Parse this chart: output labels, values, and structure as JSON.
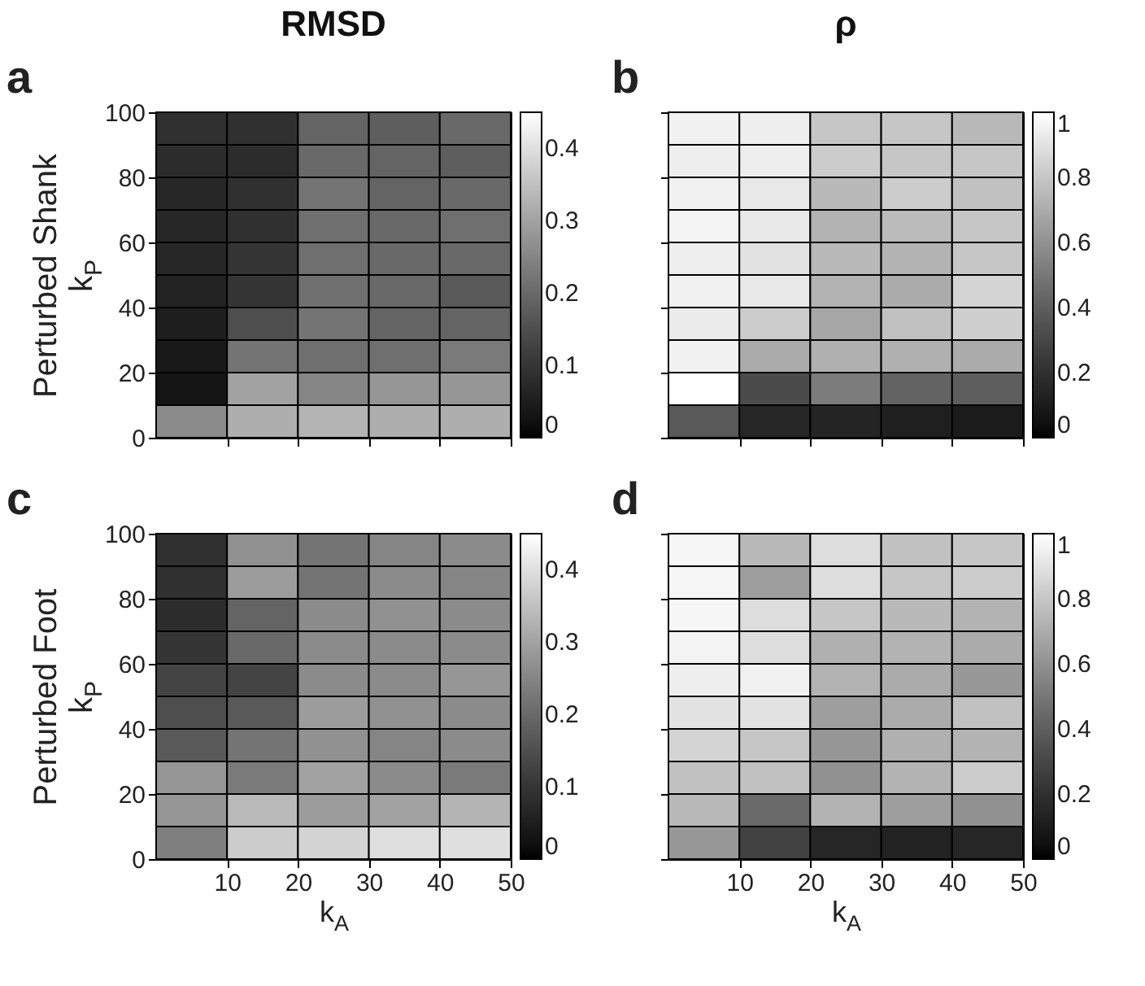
{
  "chart_data": [
    {
      "type": "heatmap",
      "title": "RMSD",
      "ylabel": "Perturbed Shank\nk$_{P}$",
      "annotations": [
        "a"
      ],
      "tick_labels": "y",
      "xlim": [
        0,
        50
      ],
      "xticks": [
        10,
        20,
        30,
        40,
        50
      ],
      "ylim": [
        0,
        100
      ],
      "yticks": [
        0,
        20,
        40,
        60,
        80,
        100
      ],
      "clim": [
        0,
        0.45
      ],
      "cticks": [
        0,
        0.1,
        0.2,
        0.3,
        0.4
      ],
      "cells": [
        [
          0.09,
          0.09,
          0.19,
          0.18,
          0.2
        ],
        [
          0.08,
          0.08,
          0.2,
          0.19,
          0.18
        ],
        [
          0.07,
          0.09,
          0.22,
          0.19,
          0.2
        ],
        [
          0.07,
          0.09,
          0.21,
          0.2,
          0.21
        ],
        [
          0.07,
          0.1,
          0.21,
          0.2,
          0.2
        ],
        [
          0.06,
          0.1,
          0.21,
          0.2,
          0.17
        ],
        [
          0.05,
          0.15,
          0.22,
          0.19,
          0.19
        ],
        [
          0.04,
          0.22,
          0.21,
          0.21,
          0.23
        ],
        [
          0.03,
          0.3,
          0.25,
          0.28,
          0.28
        ],
        [
          0.26,
          0.32,
          0.33,
          0.32,
          0.32
        ]
      ]
    },
    {
      "type": "heatmap",
      "title": "ρ",
      "annotations": [
        "b"
      ],
      "tick_labels": false,
      "xlim": [
        0,
        50
      ],
      "xticks": [
        10,
        20,
        30,
        40,
        50
      ],
      "ylim": [
        0,
        100
      ],
      "yticks": [
        0,
        20,
        40,
        60,
        80,
        100
      ],
      "clim": [
        0,
        1
      ],
      "cticks": [
        0,
        0.2,
        0.4,
        0.6,
        0.8,
        1
      ],
      "cells": [
        [
          0.95,
          0.94,
          0.8,
          0.8,
          0.75
        ],
        [
          0.94,
          0.94,
          0.82,
          0.8,
          0.8
        ],
        [
          0.95,
          0.92,
          0.75,
          0.82,
          0.78
        ],
        [
          0.96,
          0.92,
          0.73,
          0.76,
          0.8
        ],
        [
          0.94,
          0.9,
          0.75,
          0.73,
          0.8
        ],
        [
          0.95,
          0.92,
          0.73,
          0.7,
          0.85
        ],
        [
          0.93,
          0.82,
          0.68,
          0.78,
          0.83
        ],
        [
          0.95,
          0.7,
          0.72,
          0.72,
          0.7
        ],
        [
          1.0,
          0.32,
          0.52,
          0.42,
          0.4
        ],
        [
          0.38,
          0.15,
          0.14,
          0.12,
          0.1
        ]
      ]
    },
    {
      "type": "heatmap",
      "xlabel": "k$_{A}$",
      "ylabel": "Perturbed Foot\nk$_{P}$",
      "annotations": [
        "c"
      ],
      "xlim": [
        0,
        50
      ],
      "xticks": [
        10,
        20,
        30,
        40,
        50
      ],
      "ylim": [
        0,
        100
      ],
      "yticks": [
        0,
        20,
        40,
        60,
        80,
        100
      ],
      "clim": [
        0,
        0.45
      ],
      "cticks": [
        0,
        0.1,
        0.2,
        0.3,
        0.4
      ],
      "cells": [
        [
          0.09,
          0.27,
          0.22,
          0.25,
          0.26
        ],
        [
          0.09,
          0.29,
          0.22,
          0.26,
          0.25
        ],
        [
          0.08,
          0.19,
          0.26,
          0.27,
          0.26
        ],
        [
          0.1,
          0.2,
          0.26,
          0.26,
          0.26
        ],
        [
          0.13,
          0.13,
          0.26,
          0.26,
          0.28
        ],
        [
          0.15,
          0.17,
          0.29,
          0.27,
          0.26
        ],
        [
          0.17,
          0.22,
          0.27,
          0.25,
          0.26
        ],
        [
          0.28,
          0.23,
          0.3,
          0.26,
          0.23
        ],
        [
          0.28,
          0.34,
          0.29,
          0.3,
          0.33
        ],
        [
          0.24,
          0.37,
          0.38,
          0.4,
          0.4
        ]
      ]
    },
    {
      "type": "heatmap",
      "xlabel": "k$_{A}$",
      "annotations": [
        "d"
      ],
      "tick_labels": "x",
      "xlim": [
        0,
        50
      ],
      "xticks": [
        10,
        20,
        30,
        40,
        50
      ],
      "ylim": [
        0,
        100
      ],
      "yticks": [
        0,
        20,
        40,
        60,
        80,
        100
      ],
      "clim": [
        0,
        1
      ],
      "cticks": [
        0,
        0.2,
        0.4,
        0.6,
        0.8,
        1
      ],
      "cells": [
        [
          0.97,
          0.75,
          0.88,
          0.78,
          0.8
        ],
        [
          0.97,
          0.65,
          0.88,
          0.8,
          0.82
        ],
        [
          0.97,
          0.88,
          0.8,
          0.75,
          0.73
        ],
        [
          0.96,
          0.88,
          0.72,
          0.73,
          0.7
        ],
        [
          0.94,
          0.95,
          0.73,
          0.7,
          0.63
        ],
        [
          0.9,
          0.9,
          0.65,
          0.7,
          0.78
        ],
        [
          0.85,
          0.8,
          0.62,
          0.72,
          0.73
        ],
        [
          0.78,
          0.78,
          0.6,
          0.73,
          0.82
        ],
        [
          0.75,
          0.45,
          0.73,
          0.65,
          0.6
        ],
        [
          0.63,
          0.28,
          0.15,
          0.13,
          0.15
        ]
      ]
    }
  ]
}
